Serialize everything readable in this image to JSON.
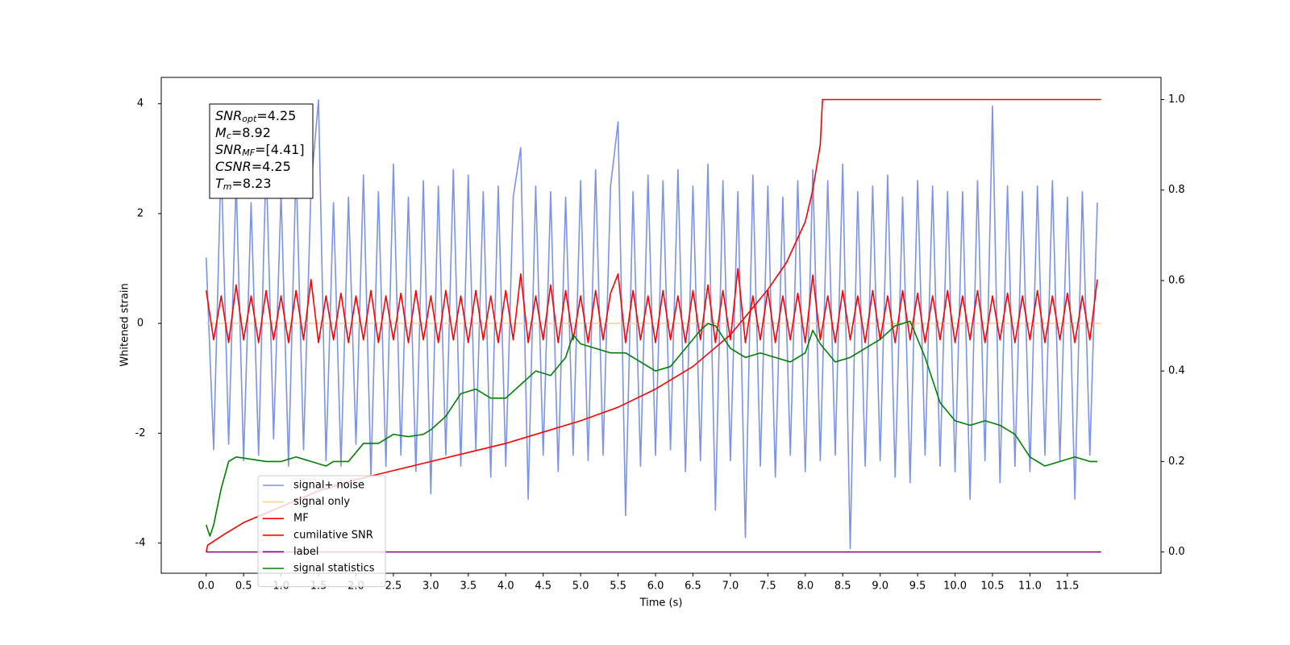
{
  "chart_data": {
    "type": "line",
    "xlabel": "Time (s)",
    "ylabel": "Whitened strain",
    "xlim": [
      -0.6,
      12.75
    ],
    "ylim": [
      -4.55,
      4.48
    ],
    "y2lim": [
      -0.047,
      1.049
    ],
    "xticks": [
      {
        "value": 0,
        "label": "0.0"
      },
      {
        "value": 0.5,
        "label": "0.5"
      },
      {
        "value": 1,
        "label": "1.0"
      },
      {
        "value": 1.5,
        "label": "1.5"
      },
      {
        "value": 2,
        "label": "2.0"
      },
      {
        "value": 2.5,
        "label": "2.5"
      },
      {
        "value": 3,
        "label": "3.0"
      },
      {
        "value": 3.5,
        "label": "3.5"
      },
      {
        "value": 4,
        "label": "4.0"
      },
      {
        "value": 4.5,
        "label": "4.5"
      },
      {
        "value": 5,
        "label": "5.0"
      },
      {
        "value": 5.5,
        "label": "5.5"
      },
      {
        "value": 6,
        "label": "6.0"
      },
      {
        "value": 6.5,
        "label": "6.5"
      },
      {
        "value": 7,
        "label": "7.0"
      },
      {
        "value": 7.5,
        "label": "7.5"
      },
      {
        "value": 8,
        "label": "8.0"
      },
      {
        "value": 8.5,
        "label": "8.5"
      },
      {
        "value": 9,
        "label": "9.0"
      },
      {
        "value": 9.5,
        "label": "9.5"
      },
      {
        "value": 10,
        "label": "10.0"
      },
      {
        "value": 10.5,
        "label": "10.5"
      },
      {
        "value": 11,
        "label": "11.0"
      },
      {
        "value": 11.5,
        "label": "11.5"
      }
    ],
    "yticks": [
      -4,
      -2,
      0,
      2,
      4
    ],
    "y2ticks": [
      {
        "value": 0,
        "label": "0.0"
      },
      {
        "value": 0.2,
        "label": "0.2"
      },
      {
        "value": 0.4,
        "label": "0.4"
      },
      {
        "value": 0.6,
        "label": "0.6"
      },
      {
        "value": 0.8,
        "label": "0.8"
      },
      {
        "value": 1,
        "label": "1.0"
      }
    ],
    "grid": false,
    "annotation": [
      {
        "symbol": "SNR",
        "subscript": "opt",
        "text": "=4.25"
      },
      {
        "symbol": "M",
        "subscript": "c",
        "text": "=8.92"
      },
      {
        "symbol": "SNR",
        "subscript": "MF",
        "text": "=[4.41]"
      },
      {
        "symbol": "CSNR",
        "text": "=4.25"
      },
      {
        "symbol": "T",
        "subscript": "m",
        "text": "=8.23"
      }
    ],
    "x": [
      0,
      0.1,
      0.2,
      0.3,
      0.4,
      0.5,
      0.6,
      0.7,
      0.8,
      0.9,
      1,
      1.1,
      1.2,
      1.3,
      1.4,
      1.5,
      1.6,
      1.7,
      1.8,
      1.9,
      2,
      2.1,
      2.2,
      2.3,
      2.4,
      2.5,
      2.6,
      2.7,
      2.8,
      2.9,
      3,
      3.1,
      3.2,
      3.3,
      3.4,
      3.5,
      3.6,
      3.7,
      3.8,
      3.9,
      4,
      4.1,
      4.2,
      4.3,
      4.4,
      4.5,
      4.6,
      4.7,
      4.8,
      4.9,
      5,
      5.1,
      5.2,
      5.3,
      5.4,
      5.5,
      5.6,
      5.7,
      5.8,
      5.9,
      6,
      6.1,
      6.2,
      6.3,
      6.4,
      6.5,
      6.6,
      6.7,
      6.8,
      6.9,
      7,
      7.1,
      7.2,
      7.3,
      7.4,
      7.5,
      7.6,
      7.7,
      7.8,
      7.9,
      8,
      8.1,
      8.2,
      8.3,
      8.4,
      8.5,
      8.6,
      8.7,
      8.8,
      8.9,
      9,
      9.1,
      9.2,
      9.3,
      9.4,
      9.5,
      9.6,
      9.7,
      9.8,
      9.9,
      10,
      10.1,
      10.2,
      10.3,
      10.4,
      10.5,
      10.6,
      10.7,
      10.8,
      10.9,
      11,
      11.1,
      11.2,
      11.3,
      11.4,
      11.5,
      11.6,
      11.7,
      11.8,
      11.9
    ],
    "series": [
      {
        "name": "signal+ noise",
        "color": "#7b93e8",
        "values": [
          1.2,
          -2.3,
          3.0,
          -2.2,
          2.6,
          -2.5,
          2.2,
          -2.4,
          3.0,
          -2.1,
          2.4,
          -2.6,
          2.9,
          -2.3,
          2.5,
          4.07,
          -2.5,
          2.2,
          -2.6,
          2.3,
          -2.2,
          2.7,
          -2.8,
          2.4,
          -2.6,
          2.9,
          -2.4,
          2.3,
          -2.7,
          2.6,
          -3.1,
          2.5,
          -2.4,
          2.8,
          -2.6,
          2.7,
          -2.3,
          2.4,
          -2.8,
          2.5,
          -2.6,
          2.3,
          3.2,
          -3.2,
          2.5,
          -2.4,
          2.4,
          -2.7,
          2.3,
          -2.4,
          2.6,
          -2.5,
          2.8,
          -2.4,
          2.5,
          3.67,
          -3.5,
          2.4,
          -2.6,
          2.7,
          -2.4,
          2.6,
          -2.3,
          2.8,
          -2.7,
          2.5,
          -2.5,
          2.9,
          -3.4,
          2.6,
          -2.5,
          2.4,
          -3.9,
          2.7,
          -2.6,
          2.5,
          -2.8,
          2.3,
          -2.4,
          2.6,
          -2.7,
          2.8,
          -2.5,
          2.6,
          -2.4,
          2.9,
          -4.1,
          2.4,
          -2.6,
          2.5,
          -2.5,
          2.7,
          -2.8,
          2.3,
          -2.9,
          2.6,
          -2.4,
          2.5,
          -2.6,
          2.4,
          -2.7,
          2.4,
          -3.2,
          2.6,
          -2.5,
          3.96,
          -2.9,
          2.5,
          -2.6,
          2.4,
          -2.7,
          2.5,
          -2.4,
          2.6,
          -2.5,
          2.3,
          -3.2,
          2.4,
          -2.4,
          2.2
        ]
      },
      {
        "name": "signal only",
        "color": "#fcd38a",
        "x": [
          0,
          11.95
        ],
        "values": [
          0,
          0
        ]
      },
      {
        "name": "MF",
        "color": "#ff0000",
        "values": [
          0.6,
          -0.3,
          0.5,
          -0.35,
          0.7,
          -0.3,
          0.5,
          -0.35,
          0.6,
          -0.3,
          0.5,
          -0.35,
          0.6,
          -0.3,
          0.8,
          -0.35,
          0.5,
          -0.3,
          0.55,
          -0.35,
          0.5,
          -0.3,
          0.6,
          -0.35,
          0.5,
          -0.3,
          0.55,
          -0.35,
          0.6,
          -0.3,
          0.5,
          -0.35,
          0.6,
          -0.3,
          0.5,
          -0.35,
          0.6,
          -0.3,
          0.5,
          -0.35,
          0.6,
          -0.3,
          0.9,
          -0.35,
          0.5,
          -0.3,
          0.7,
          -0.35,
          0.6,
          -0.3,
          0.5,
          -0.35,
          0.6,
          -0.3,
          0.55,
          0.9,
          -0.35,
          0.6,
          -0.3,
          0.5,
          -0.35,
          0.6,
          -0.3,
          0.5,
          -0.35,
          0.6,
          -0.3,
          0.7,
          -0.35,
          0.6,
          -0.3,
          1.0,
          -0.35,
          0.5,
          -0.3,
          0.6,
          -0.35,
          0.5,
          -0.3,
          0.55,
          -0.35,
          0.88,
          -0.3,
          0.5,
          -0.35,
          0.6,
          -0.3,
          0.5,
          -0.35,
          0.6,
          -0.3,
          0.5,
          -0.35,
          0.6,
          -0.3,
          0.55,
          -0.35,
          0.5,
          -0.3,
          0.6,
          -0.35,
          0.5,
          -0.3,
          0.6,
          -0.35,
          0.5,
          -0.3,
          0.55,
          -0.35,
          0.5,
          -0.3,
          0.6,
          -0.35,
          0.5,
          -0.3,
          0.55,
          -0.35,
          0.5,
          -0.3,
          0.8
        ]
      },
      {
        "name": "cumilative SNR",
        "color": "#ff0000",
        "axis": "y2",
        "x": [
          0,
          0.02,
          0.25,
          0.5,
          1.0,
          1.5,
          2.0,
          2.5,
          3.0,
          3.5,
          4.0,
          4.5,
          5.0,
          5.5,
          6.0,
          6.5,
          7.0,
          7.25,
          7.5,
          7.75,
          8.0,
          8.1,
          8.2,
          8.23,
          11.95
        ],
        "values": [
          0.0,
          0.015,
          0.04,
          0.065,
          0.1,
          0.135,
          0.16,
          0.18,
          0.2,
          0.22,
          0.24,
          0.265,
          0.29,
          0.32,
          0.36,
          0.41,
          0.48,
          0.53,
          0.58,
          0.64,
          0.73,
          0.8,
          0.9,
          1.0,
          1.0
        ]
      },
      {
        "name": "label",
        "color": "#800080",
        "axis": "y2",
        "x": [
          0,
          11.95
        ],
        "values": [
          0,
          0
        ]
      },
      {
        "name": "signal statistics",
        "color": "#008000",
        "axis": "y2",
        "x": [
          0,
          0.05,
          0.1,
          0.2,
          0.3,
          0.4,
          0.6,
          0.8,
          1.0,
          1.2,
          1.4,
          1.6,
          1.7,
          1.8,
          1.9,
          2.0,
          2.1,
          2.3,
          2.5,
          2.7,
          2.9,
          3.0,
          3.2,
          3.4,
          3.6,
          3.8,
          4.0,
          4.2,
          4.4,
          4.6,
          4.8,
          4.9,
          5.0,
          5.2,
          5.4,
          5.6,
          5.8,
          6.0,
          6.2,
          6.4,
          6.6,
          6.7,
          6.8,
          7.0,
          7.2,
          7.4,
          7.6,
          7.8,
          8.0,
          8.1,
          8.2,
          8.4,
          8.6,
          8.8,
          9.0,
          9.2,
          9.4,
          9.6,
          9.8,
          10.0,
          10.2,
          10.4,
          10.6,
          10.8,
          11.0,
          11.2,
          11.4,
          11.6,
          11.8,
          11.9
        ],
        "values": [
          0.06,
          0.035,
          0.06,
          0.14,
          0.2,
          0.21,
          0.205,
          0.2,
          0.2,
          0.21,
          0.2,
          0.19,
          0.2,
          0.2,
          0.2,
          0.22,
          0.24,
          0.24,
          0.26,
          0.255,
          0.26,
          0.27,
          0.3,
          0.35,
          0.36,
          0.34,
          0.34,
          0.37,
          0.4,
          0.39,
          0.43,
          0.48,
          0.46,
          0.45,
          0.44,
          0.44,
          0.42,
          0.4,
          0.41,
          0.45,
          0.49,
          0.505,
          0.5,
          0.45,
          0.43,
          0.44,
          0.43,
          0.42,
          0.44,
          0.49,
          0.46,
          0.42,
          0.43,
          0.45,
          0.47,
          0.5,
          0.51,
          0.43,
          0.33,
          0.29,
          0.28,
          0.29,
          0.28,
          0.26,
          0.21,
          0.19,
          0.2,
          0.21,
          0.2,
          0.2
        ]
      }
    ]
  }
}
